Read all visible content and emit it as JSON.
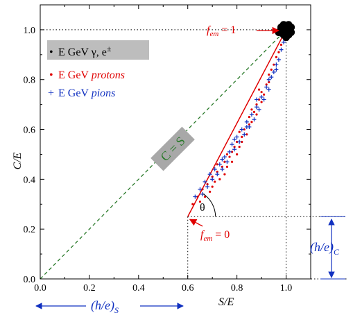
{
  "chart_data": {
    "type": "scatter",
    "xlabel": "S/E",
    "ylabel": "C/E",
    "xlim": [
      0.0,
      1.1
    ],
    "ylim": [
      0.0,
      1.1
    ],
    "x_ticks": [
      "0.0",
      "0.2",
      "0.4",
      "0.6",
      "0.8",
      "1.0"
    ],
    "y_ticks": [
      "0.0",
      "0.2",
      "0.4",
      "0.6",
      "0.8",
      "1.0"
    ],
    "grid": false,
    "legend_position": "top-left",
    "legend": [
      {
        "marker": "•",
        "text_plain": "E GeV γ, e",
        "text_sup": "±",
        "color": "#000000",
        "box": "#bdbdbd"
      },
      {
        "marker": "•",
        "text_plain": "E GeV ",
        "text_italic": "protons",
        "color": "#e00000"
      },
      {
        "marker": "+",
        "text_plain": "E GeV ",
        "text_italic": "pions",
        "color": "#1030c0"
      }
    ],
    "diagonal": {
      "label": "C = S",
      "color": "#2a7a2a",
      "box": "#a8a8a8",
      "from": [
        0,
        0
      ],
      "to": [
        1.0,
        1.0
      ]
    },
    "em_line": {
      "from": [
        0.6,
        0.25
      ],
      "to": [
        1.0,
        1.0
      ],
      "color": "#e00000"
    },
    "reference_lines": {
      "y_at_x_one": 1.0,
      "x_at_em_zero": 0.6,
      "y_at_em_zero": 0.25
    },
    "annotations": {
      "fem1": {
        "pre": "f",
        "sub": "em",
        "post": " = 1"
      },
      "fem0": {
        "pre": "f",
        "sub": "em",
        "post": " = 0"
      },
      "theta": "θ",
      "hc": {
        "pre": "(h/e)",
        "sub": "C"
      },
      "hs": {
        "pre": "(h/e)",
        "sub": "S"
      }
    },
    "colors": {
      "red": "#e00000",
      "blue": "#1030c0",
      "black": "#000000",
      "green": "#2a7a2a"
    },
    "series": [
      {
        "name": "E GeV γ, e±",
        "marker": "dot",
        "color": "#000000",
        "points": [
          [
            0.98,
            0.99
          ],
          [
            0.99,
            1.0
          ],
          [
            1.0,
            0.99
          ],
          [
            1.01,
            1.0
          ],
          [
            1.0,
            1.01
          ],
          [
            0.99,
            0.98
          ],
          [
            1.01,
            0.98
          ],
          [
            1.02,
            0.99
          ],
          [
            0.98,
            1.01
          ],
          [
            1.0,
            0.97
          ],
          [
            0.97,
            0.99
          ],
          [
            1.01,
            1.02
          ],
          [
            0.99,
            1.02
          ],
          [
            1.02,
            1.01
          ],
          [
            1.0,
            1.0
          ],
          [
            0.985,
            0.995
          ],
          [
            1.005,
            0.985
          ],
          [
            1.015,
            1.005
          ],
          [
            0.995,
            1.01
          ],
          [
            0.99,
            0.995
          ]
        ]
      },
      {
        "name": "E GeV protons",
        "marker": "dot",
        "color": "#e00000",
        "points": [
          [
            0.62,
            0.3
          ],
          [
            0.64,
            0.33
          ],
          [
            0.65,
            0.31
          ],
          [
            0.66,
            0.36
          ],
          [
            0.67,
            0.33
          ],
          [
            0.68,
            0.38
          ],
          [
            0.69,
            0.35
          ],
          [
            0.7,
            0.41
          ],
          [
            0.7,
            0.37
          ],
          [
            0.71,
            0.39
          ],
          [
            0.72,
            0.43
          ],
          [
            0.73,
            0.4
          ],
          [
            0.74,
            0.45
          ],
          [
            0.75,
            0.42
          ],
          [
            0.75,
            0.47
          ],
          [
            0.76,
            0.45
          ],
          [
            0.77,
            0.49
          ],
          [
            0.78,
            0.47
          ],
          [
            0.78,
            0.51
          ],
          [
            0.79,
            0.53
          ],
          [
            0.8,
            0.5
          ],
          [
            0.8,
            0.55
          ],
          [
            0.81,
            0.53
          ],
          [
            0.82,
            0.57
          ],
          [
            0.82,
            0.55
          ],
          [
            0.83,
            0.6
          ],
          [
            0.84,
            0.58
          ],
          [
            0.85,
            0.62
          ],
          [
            0.85,
            0.65
          ],
          [
            0.86,
            0.63
          ],
          [
            0.87,
            0.67
          ],
          [
            0.88,
            0.66
          ],
          [
            0.88,
            0.7
          ],
          [
            0.89,
            0.72
          ],
          [
            0.9,
            0.71
          ],
          [
            0.9,
            0.75
          ],
          [
            0.91,
            0.74
          ],
          [
            0.92,
            0.78
          ],
          [
            0.93,
            0.79
          ],
          [
            0.93,
            0.82
          ],
          [
            0.94,
            0.84
          ],
          [
            0.95,
            0.86
          ],
          [
            0.96,
            0.89
          ],
          [
            0.97,
            0.91
          ],
          [
            0.98,
            0.94
          ],
          [
            0.76,
            0.5
          ],
          [
            0.81,
            0.59
          ],
          [
            0.86,
            0.68
          ],
          [
            0.89,
            0.76
          ],
          [
            0.72,
            0.46
          ]
        ]
      },
      {
        "name": "E GeV pions",
        "marker": "plus",
        "color": "#1030c0",
        "points": [
          [
            0.63,
            0.33
          ],
          [
            0.65,
            0.36
          ],
          [
            0.66,
            0.34
          ],
          [
            0.67,
            0.39
          ],
          [
            0.68,
            0.37
          ],
          [
            0.69,
            0.42
          ],
          [
            0.7,
            0.4
          ],
          [
            0.71,
            0.44
          ],
          [
            0.72,
            0.42
          ],
          [
            0.73,
            0.46
          ],
          [
            0.74,
            0.44
          ],
          [
            0.75,
            0.49
          ],
          [
            0.76,
            0.47
          ],
          [
            0.77,
            0.51
          ],
          [
            0.78,
            0.54
          ],
          [
            0.79,
            0.52
          ],
          [
            0.8,
            0.57
          ],
          [
            0.81,
            0.55
          ],
          [
            0.82,
            0.6
          ],
          [
            0.83,
            0.58
          ],
          [
            0.84,
            0.63
          ],
          [
            0.85,
            0.61
          ],
          [
            0.86,
            0.66
          ],
          [
            0.87,
            0.64
          ],
          [
            0.88,
            0.69
          ],
          [
            0.89,
            0.68
          ],
          [
            0.9,
            0.73
          ],
          [
            0.91,
            0.72
          ],
          [
            0.92,
            0.77
          ],
          [
            0.93,
            0.76
          ],
          [
            0.94,
            0.81
          ],
          [
            0.95,
            0.83
          ],
          [
            0.96,
            0.86
          ],
          [
            0.97,
            0.88
          ],
          [
            0.98,
            0.92
          ],
          [
            0.99,
            0.95
          ],
          [
            0.74,
            0.48
          ],
          [
            0.79,
            0.56
          ],
          [
            0.84,
            0.61
          ],
          [
            0.88,
            0.72
          ],
          [
            0.93,
            0.8
          ],
          [
            0.96,
            0.84
          ]
        ]
      }
    ]
  }
}
